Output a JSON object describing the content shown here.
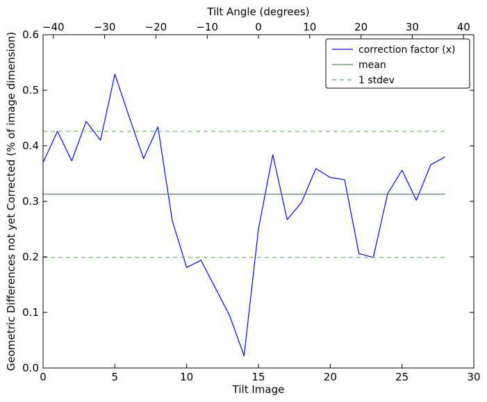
{
  "chart_data": {
    "type": "line",
    "xlabel": "Tilt Image",
    "ylabel": "Geometric Differences not yet Corrected (% of image dimension)",
    "top_xlabel": "Tilt Angle (degrees)",
    "xlim": [
      0,
      30
    ],
    "ylim": [
      0.0,
      0.6
    ],
    "top_xlim": [
      -42,
      42
    ],
    "x_ticks": [
      0,
      5,
      10,
      15,
      20,
      25,
      30
    ],
    "x_tick_labels": [
      "0",
      "5",
      "10",
      "15",
      "20",
      "25",
      "30"
    ],
    "y_ticks": [
      0.0,
      0.1,
      0.2,
      0.3,
      0.4,
      0.5,
      0.6
    ],
    "y_tick_labels": [
      "0.0",
      "0.1",
      "0.2",
      "0.3",
      "0.4",
      "0.5",
      "0.6"
    ],
    "top_ticks": [
      -40,
      -30,
      -20,
      -10,
      0,
      10,
      20,
      30,
      40
    ],
    "top_tick_labels": [
      "−40",
      "−30",
      "−20",
      "−10",
      "0",
      "10",
      "20",
      "30",
      "40"
    ],
    "grid": false,
    "legend_position": "top-right",
    "series": [
      {
        "name": "correction factor (x)",
        "color": "#0000ff",
        "style": "solid",
        "x": [
          0,
          1,
          2,
          3,
          4,
          5,
          6,
          7,
          8,
          9,
          10,
          11,
          12,
          13,
          14,
          15,
          16,
          17,
          18,
          19,
          20,
          21,
          22,
          23,
          24,
          25,
          26,
          27,
          28
        ],
        "y": [
          0.37,
          0.426,
          0.373,
          0.444,
          0.41,
          0.529,
          0.452,
          0.377,
          0.434,
          0.265,
          0.181,
          0.194,
          0.144,
          0.094,
          0.022,
          0.25,
          0.384,
          0.267,
          0.298,
          0.359,
          0.343,
          0.339,
          0.206,
          0.199,
          0.314,
          0.356,
          0.302,
          0.366,
          0.38
        ]
      },
      {
        "name": "mean",
        "color": "#3a9a3a",
        "style": "solid",
        "x": [
          0,
          28
        ],
        "y": [
          0.313,
          0.313
        ]
      },
      {
        "name": "1 stdev",
        "color": "#5cb85c",
        "style": "dashed",
        "x": [
          0,
          28
        ],
        "y": [
          0.426,
          0.426
        ]
      },
      {
        "name": "",
        "color": "#5cb85c",
        "style": "dashed",
        "x": [
          0,
          28
        ],
        "y": [
          0.199,
          0.199
        ]
      }
    ]
  }
}
